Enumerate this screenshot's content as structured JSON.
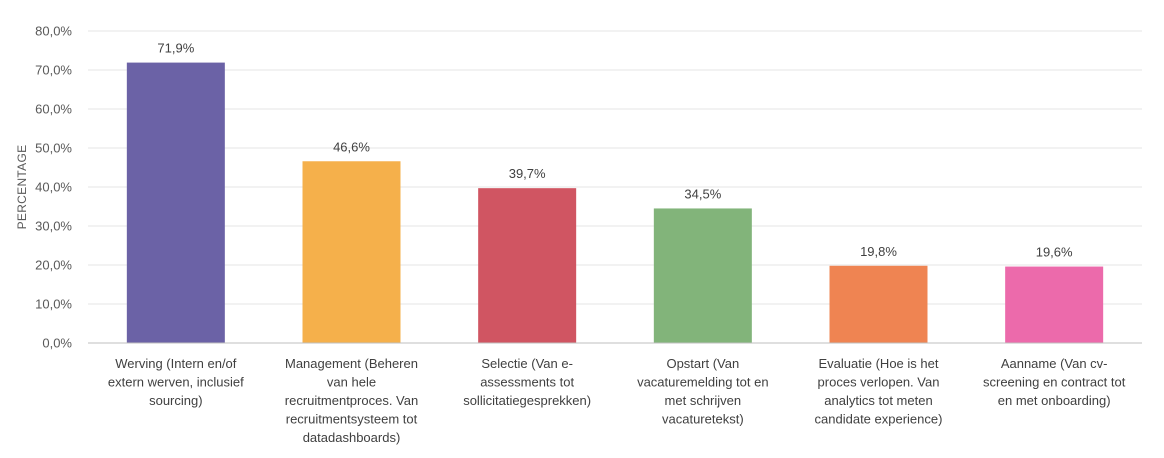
{
  "chart_data": {
    "type": "bar",
    "title": "",
    "xlabel": "",
    "ylabel": "PERCENTAGE",
    "ylim": [
      0,
      80
    ],
    "y_ticks": [
      "0,0%",
      "10,0%",
      "20,0%",
      "30,0%",
      "40,0%",
      "50,0%",
      "60,0%",
      "70,0%",
      "80,0%"
    ],
    "grid": true,
    "legend": "none",
    "categories": [
      [
        "Werving (Intern en/of",
        "extern werven, inclusief",
        "sourcing)"
      ],
      [
        "Management (Beheren",
        "van hele",
        "recruitmentproces. Van",
        "recruitmentsysteem tot",
        "datadashboards)"
      ],
      [
        "Selectie (Van e-",
        "assessments tot",
        "sollicitatiegesprekken)"
      ],
      [
        "Opstart (Van",
        "vacaturemelding tot en",
        "met schrijven",
        "vacaturetekst)"
      ],
      [
        "Evaluatie (Hoe is het",
        "proces verlopen. Van",
        "analytics tot meten",
        "candidate experience)"
      ],
      [
        "Aanname (Van cv-",
        "screening en contract tot",
        "en met onboarding)"
      ]
    ],
    "values": [
      71.9,
      46.6,
      39.7,
      34.5,
      19.8,
      19.6
    ],
    "data_labels": [
      "71,9%",
      "46,6%",
      "39,7%",
      "34,5%",
      "19,8%",
      "19,6%"
    ],
    "colors": [
      "#6b62a6",
      "#f5b04b",
      "#d05562",
      "#82b47a",
      "#ef8452",
      "#ec6aab"
    ],
    "gridline_color": "#e6e6e6",
    "axis_color": "#bfbfbf"
  }
}
